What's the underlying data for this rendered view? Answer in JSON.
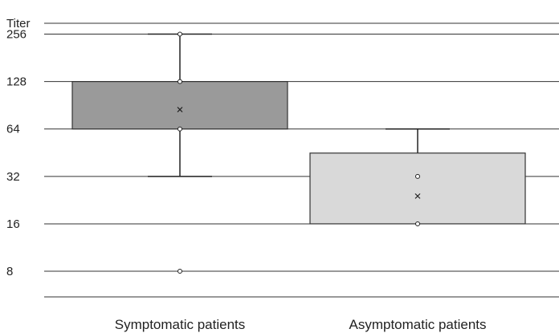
{
  "chart_data": {
    "type": "box",
    "ylabel": "Titer",
    "y_scale": "log2",
    "ylim": [
      5.5,
      300
    ],
    "yticks": [
      8,
      16,
      32,
      64,
      128,
      256
    ],
    "categories": [
      "Symptomatic patients",
      "Asymptomatic patients"
    ],
    "boxes": [
      {
        "category": "Symptomatic patients",
        "whisker_low": 32,
        "q1": 64,
        "median": 64,
        "q3": 128,
        "whisker_high": 256,
        "mean": 85,
        "points": [
          8,
          64,
          128,
          256
        ],
        "fill": "#9a9a9a"
      },
      {
        "category": "Asymptomatic patients",
        "whisker_low": 16,
        "q1": 16,
        "median": 16,
        "q3": 45,
        "whisker_high": 64,
        "mean": 24,
        "points": [
          16,
          32
        ],
        "fill": "#d9d9d9"
      }
    ],
    "grid": true,
    "legend": "none"
  }
}
